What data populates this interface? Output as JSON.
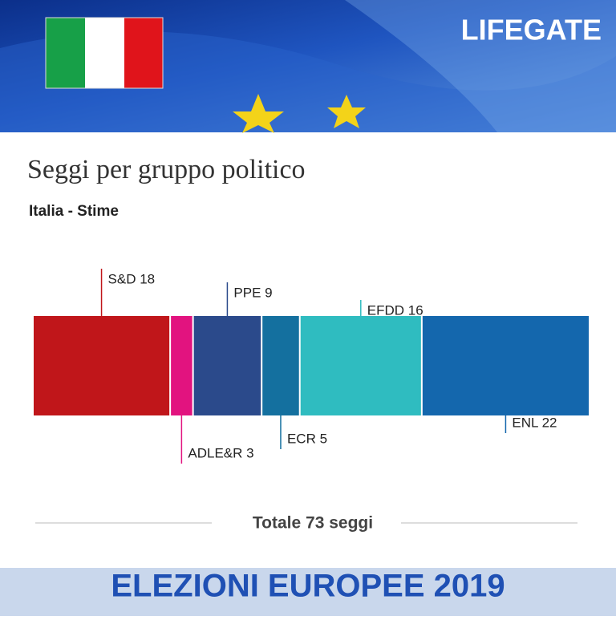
{
  "brand": "LIFEGATE",
  "footer": "ELEZIONI EUROPEE 2019",
  "chart_data": {
    "type": "stacked-bar",
    "title": "Seggi per gruppo politico",
    "subtitle": "Italia - Stime",
    "values": [
      18,
      3,
      9,
      5,
      16,
      22
    ],
    "value_labels": [
      "S&D 18",
      "ADLE&R 3",
      "PPE 9",
      "ECR 5",
      "EFDD 16",
      "ENL 22"
    ],
    "colors": [
      "#c0161a",
      "#e2137f",
      "#2b4a8b",
      "#14709f",
      "#2fbcc0",
      "#1467ad"
    ],
    "xlim": [
      0,
      73
    ],
    "total_label": "Totale 73 seggi"
  }
}
